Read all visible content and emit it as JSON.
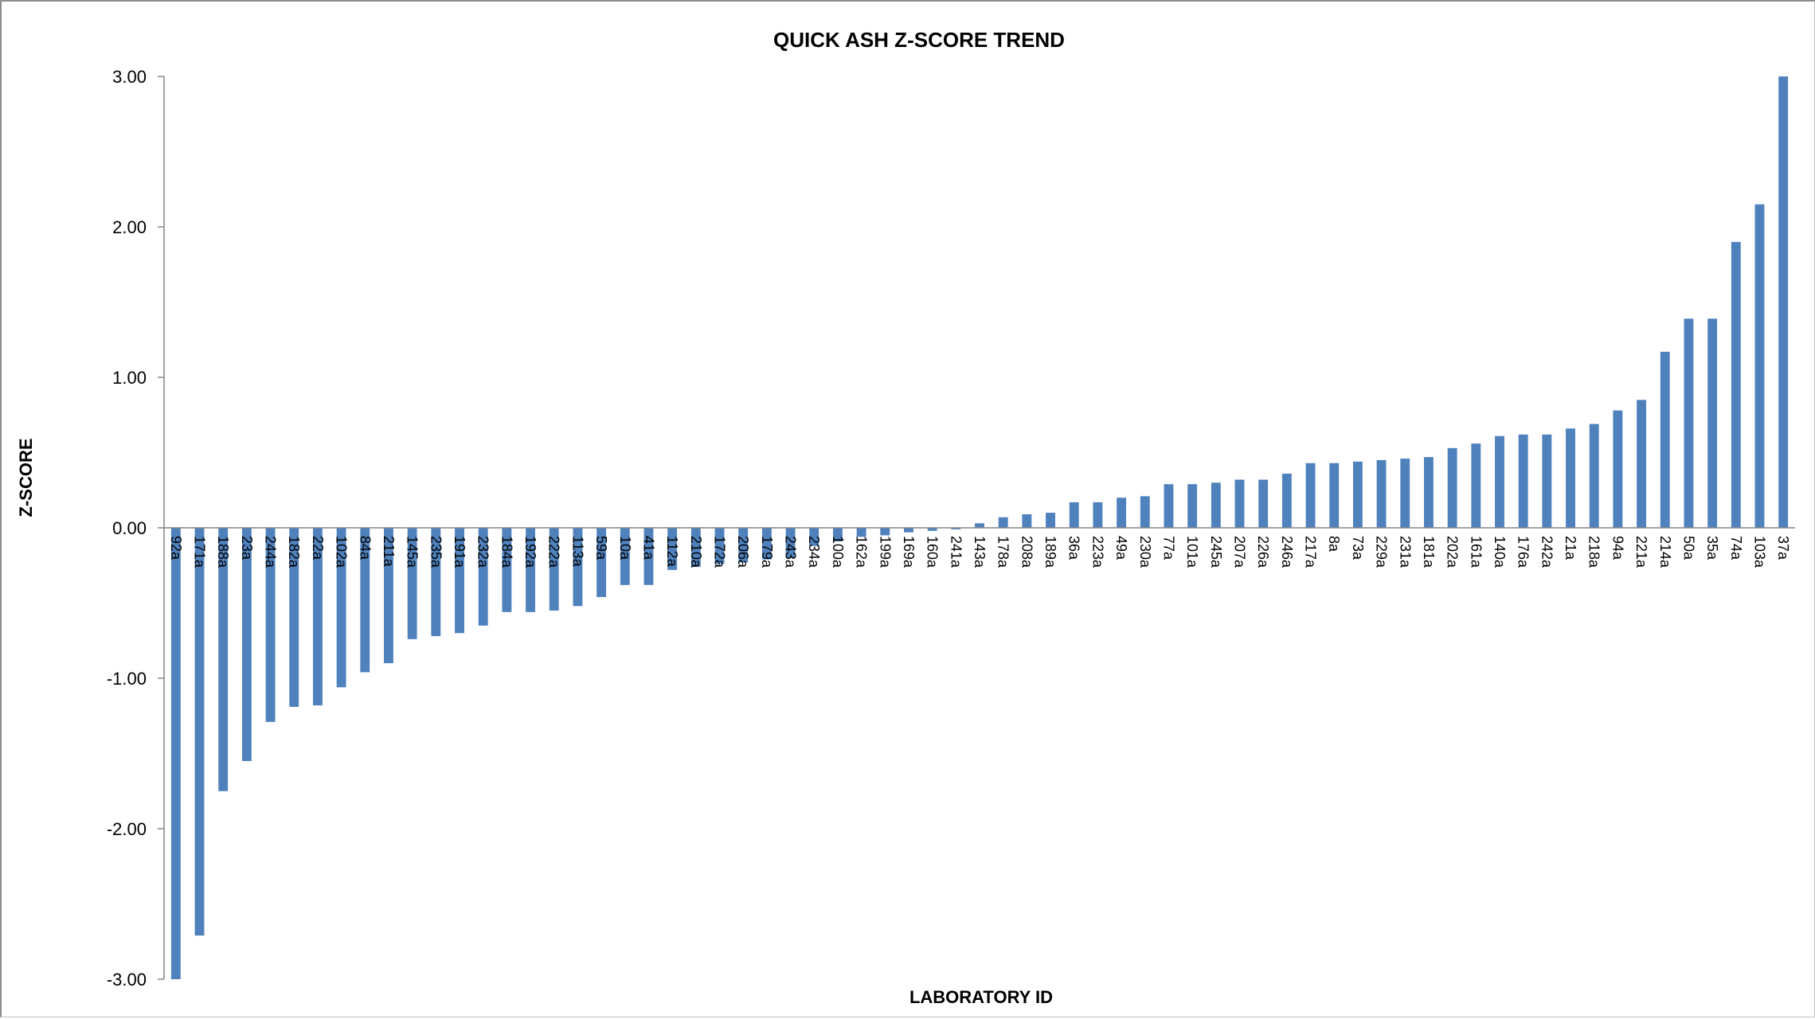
{
  "chart_data": {
    "type": "bar",
    "title": "QUICK ASH Z-SCORE TREND",
    "xlabel": "LABORATORY ID",
    "ylabel": "Z-SCORE",
    "ylim": [
      -3.0,
      3.0
    ],
    "yticks": [
      "3.00",
      "2.00",
      "1.00",
      "0.00",
      "-1.00",
      "-2.00",
      "-3.00"
    ],
    "grid": false,
    "bar_color": "#4f81bd",
    "categories": [
      "92a",
      "171a",
      "188a",
      "23a",
      "244a",
      "182a",
      "22a",
      "102a",
      "84a",
      "211a",
      "145a",
      "235a",
      "191a",
      "232a",
      "184a",
      "192a",
      "222a",
      "113a",
      "59a",
      "10a",
      "41a",
      "112a",
      "210a",
      "172a",
      "206a",
      "179a",
      "243a",
      "234a",
      "100a",
      "162a",
      "199a",
      "169a",
      "160a",
      "241a",
      "143a",
      "178a",
      "208a",
      "189a",
      "36a",
      "223a",
      "49a",
      "230a",
      "77a",
      "101a",
      "245a",
      "207a",
      "226a",
      "246a",
      "217a",
      "8a",
      "73a",
      "229a",
      "231a",
      "181a",
      "202a",
      "161a",
      "140a",
      "176a",
      "242a",
      "21a",
      "218a",
      "94a",
      "221a",
      "214a",
      "50a",
      "35a",
      "74a",
      "103a",
      "37a"
    ],
    "values": [
      -3.0,
      -2.71,
      -1.75,
      -1.55,
      -1.29,
      -1.19,
      -1.18,
      -1.06,
      -0.96,
      -0.9,
      -0.74,
      -0.72,
      -0.7,
      -0.65,
      -0.56,
      -0.56,
      -0.55,
      -0.52,
      -0.46,
      -0.38,
      -0.38,
      -0.28,
      -0.26,
      -0.24,
      -0.23,
      -0.21,
      -0.2,
      -0.12,
      -0.09,
      -0.06,
      -0.05,
      -0.03,
      -0.02,
      -0.01,
      0.03,
      0.07,
      0.09,
      0.1,
      0.17,
      0.17,
      0.2,
      0.21,
      0.29,
      0.29,
      0.3,
      0.32,
      0.32,
      0.36,
      0.43,
      0.43,
      0.44,
      0.45,
      0.46,
      0.47,
      0.53,
      0.56,
      0.61,
      0.62,
      0.62,
      0.66,
      0.69,
      0.78,
      0.85,
      1.17,
      1.39,
      1.39,
      1.9,
      2.15,
      3.0
    ]
  }
}
